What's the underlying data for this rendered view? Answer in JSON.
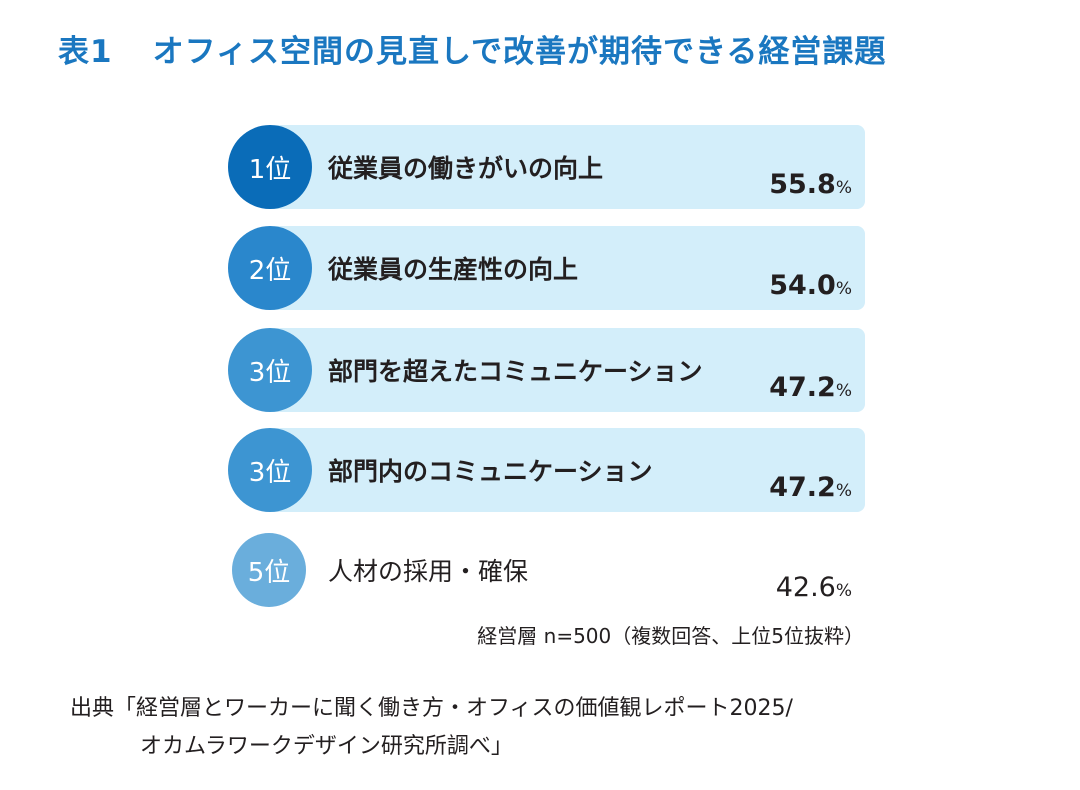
{
  "title": {
    "number": "表1",
    "text": "オフィス空間の見直しで改善が期待できる経営課題"
  },
  "colors": {
    "title": "#1a77c0",
    "bar_bg": "#d3eefa",
    "rank_circles": [
      "#0a6cb8",
      "#2a87cc",
      "#3d95d2",
      "#3d95d2",
      "#6aaedc"
    ]
  },
  "chart_data": {
    "type": "table",
    "title": "表1 オフィス空間の見直しで改善が期待できる経営課題",
    "rows": [
      {
        "rank": "1位",
        "label": "従業員の働きがいの向上",
        "value": 55.8,
        "value_text": "55.8",
        "unit": "%"
      },
      {
        "rank": "2位",
        "label": "従業員の生産性の向上",
        "value": 54.0,
        "value_text": "54.0",
        "unit": "%"
      },
      {
        "rank": "3位",
        "label": "部門を超えたコミュニケーション",
        "value": 47.2,
        "value_text": "47.2",
        "unit": "%"
      },
      {
        "rank": "3位",
        "label": "部門内のコミュニケーション",
        "value": 47.2,
        "value_text": "47.2",
        "unit": "%"
      },
      {
        "rank": "5位",
        "label": "人材の採用・確保",
        "value": 42.6,
        "value_text": "42.6",
        "unit": "%"
      }
    ],
    "note": "経営層 n=500（複数回答、上位5位抜粋）"
  },
  "source": {
    "line1": "出典「経営層とワーカーに聞く働き方・オフィスの価値観レポート2025/",
    "line2": "オカムラワークデザイン研究所調べ」"
  }
}
